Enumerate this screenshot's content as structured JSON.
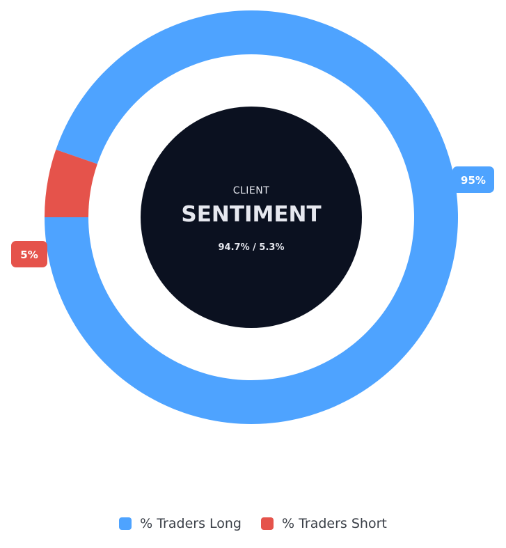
{
  "chart_data": {
    "type": "pie",
    "variant": "donut",
    "center_label": {
      "small": "CLIENT",
      "big": "SENTIMENT",
      "ratio": "94.7% / 5.3%"
    },
    "series": [
      {
        "name": "% Traders Long",
        "value": 94.7,
        "label": "95%",
        "color": "#4ea3ff"
      },
      {
        "name": "% Traders Short",
        "value": 5.3,
        "label": "5%",
        "color": "#e5534b"
      }
    ],
    "legend_position": "bottom-center"
  },
  "colors": {
    "center_fill": "#0b1120",
    "center_text": "#e6e8ef",
    "label_text": "#ffffff",
    "legend_text": "#3a3f47"
  }
}
